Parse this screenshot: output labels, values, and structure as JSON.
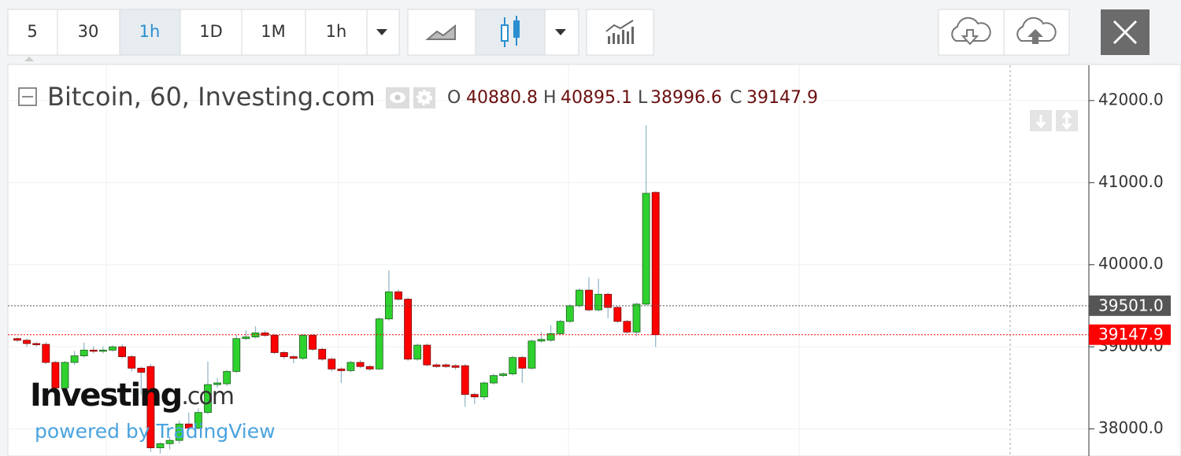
{
  "toolbar": {
    "intervals": [
      "5",
      "30",
      "1h",
      "1D",
      "1M",
      "1h"
    ]
  },
  "chart_data": {
    "type": "candlestick",
    "title": "Bitcoin, 60, Investing.com",
    "legend": {
      "open_label": "O",
      "open": 40880.8,
      "high_label": "H",
      "high": 40895.1,
      "low_label": "L",
      "low": 38996.6,
      "close_label": "C",
      "close": 39147.9
    },
    "open": [
      39100,
      39080,
      39040,
      39030,
      38810,
      38500,
      38810,
      38890,
      38960,
      38950,
      38960,
      39000,
      38880,
      38740,
      38760,
      37770,
      37820,
      37860,
      38060,
      38010,
      38200,
      38540,
      38550,
      38700,
      39100,
      39120,
      39170,
      39140,
      38930,
      38880,
      38860,
      39140,
      38970,
      38850,
      38730,
      38710,
      38810,
      38760,
      38730,
      39340,
      39670,
      39580,
      38850,
      39020,
      38780,
      38780,
      38770,
      38770,
      38420,
      38390,
      38560,
      38650,
      38670,
      38870,
      38740,
      39070,
      39080,
      39160,
      39310,
      39500,
      39690,
      39450,
      39640,
      39480,
      39310,
      39180,
      39520,
      40880.8
    ],
    "high": [
      39110,
      39100,
      39060,
      39060,
      38830,
      38830,
      38950,
      39050,
      39010,
      39000,
      39020,
      39030,
      38900,
      38760,
      38790,
      37840,
      37900,
      38100,
      38200,
      38250,
      38820,
      38620,
      38720,
      39150,
      39200,
      39250,
      39200,
      39160,
      38950,
      38900,
      39160,
      39160,
      38990,
      38870,
      38750,
      38830,
      38840,
      38780,
      39360,
      39930,
      39700,
      39600,
      39040,
      39040,
      38800,
      38800,
      38790,
      38790,
      38440,
      38580,
      38670,
      38690,
      38890,
      38890,
      39090,
      39180,
      39260,
      39330,
      39520,
      39710,
      39850,
      39830,
      39660,
      39500,
      39330,
      39540,
      41700,
      40895.1
    ],
    "low": [
      39060,
      39000,
      39000,
      38790,
      38480,
      38470,
      38780,
      38870,
      38920,
      38920,
      38940,
      38860,
      38700,
      38420,
      37720,
      37700,
      37750,
      37820,
      37990,
      37990,
      38180,
      38500,
      38520,
      38680,
      39080,
      39100,
      39120,
      38910,
      38850,
      38800,
      38840,
      38950,
      38830,
      38700,
      38560,
      38690,
      38740,
      38710,
      38720,
      39320,
      39560,
      38830,
      38830,
      38760,
      38740,
      38740,
      38720,
      38270,
      38300,
      38350,
      38540,
      38630,
      38650,
      38560,
      38720,
      39050,
      39060,
      39140,
      39290,
      39480,
      39430,
      39430,
      39350,
      39290,
      39160,
      39130,
      39500,
      38996.6
    ],
    "close": [
      39080,
      39040,
      39030,
      38810,
      38500,
      38810,
      38890,
      38960,
      38950,
      38960,
      39000,
      38880,
      38740,
      38690,
      37770,
      37820,
      37860,
      38060,
      38010,
      38200,
      38540,
      38560,
      38700,
      39100,
      39120,
      39170,
      39140,
      38930,
      38880,
      38860,
      39140,
      38970,
      38850,
      38730,
      38710,
      38810,
      38760,
      38730,
      39340,
      39670,
      39580,
      38850,
      39020,
      38780,
      38760,
      38760,
      38750,
      38420,
      38390,
      38560,
      38650,
      38670,
      38870,
      38740,
      39070,
      39090,
      39160,
      39310,
      39500,
      39690,
      39450,
      39640,
      39480,
      39310,
      39180,
      39520,
      40870,
      39147.9
    ],
    "up_color": "#2fd12f",
    "down_color": "#ff0000",
    "ylim": [
      37670,
      42430
    ],
    "yticks": [
      {
        "value": 42000,
        "label": "42000.0"
      },
      {
        "value": 41000,
        "label": "41000.0"
      },
      {
        "value": 40000,
        "label": "40000.0"
      },
      {
        "value": 39000,
        "label": "39000.0"
      },
      {
        "value": 38000,
        "label": "38000.0"
      }
    ],
    "grid": true,
    "price_labels": [
      {
        "value": 39501,
        "label": "39501.0",
        "color": "#555555"
      },
      {
        "value": 39147.9,
        "color": "#ff0000"
      }
    ]
  },
  "watermark": {
    "brand": "Investing",
    "suffix": ".com",
    "credit": "powered by TradingView"
  }
}
